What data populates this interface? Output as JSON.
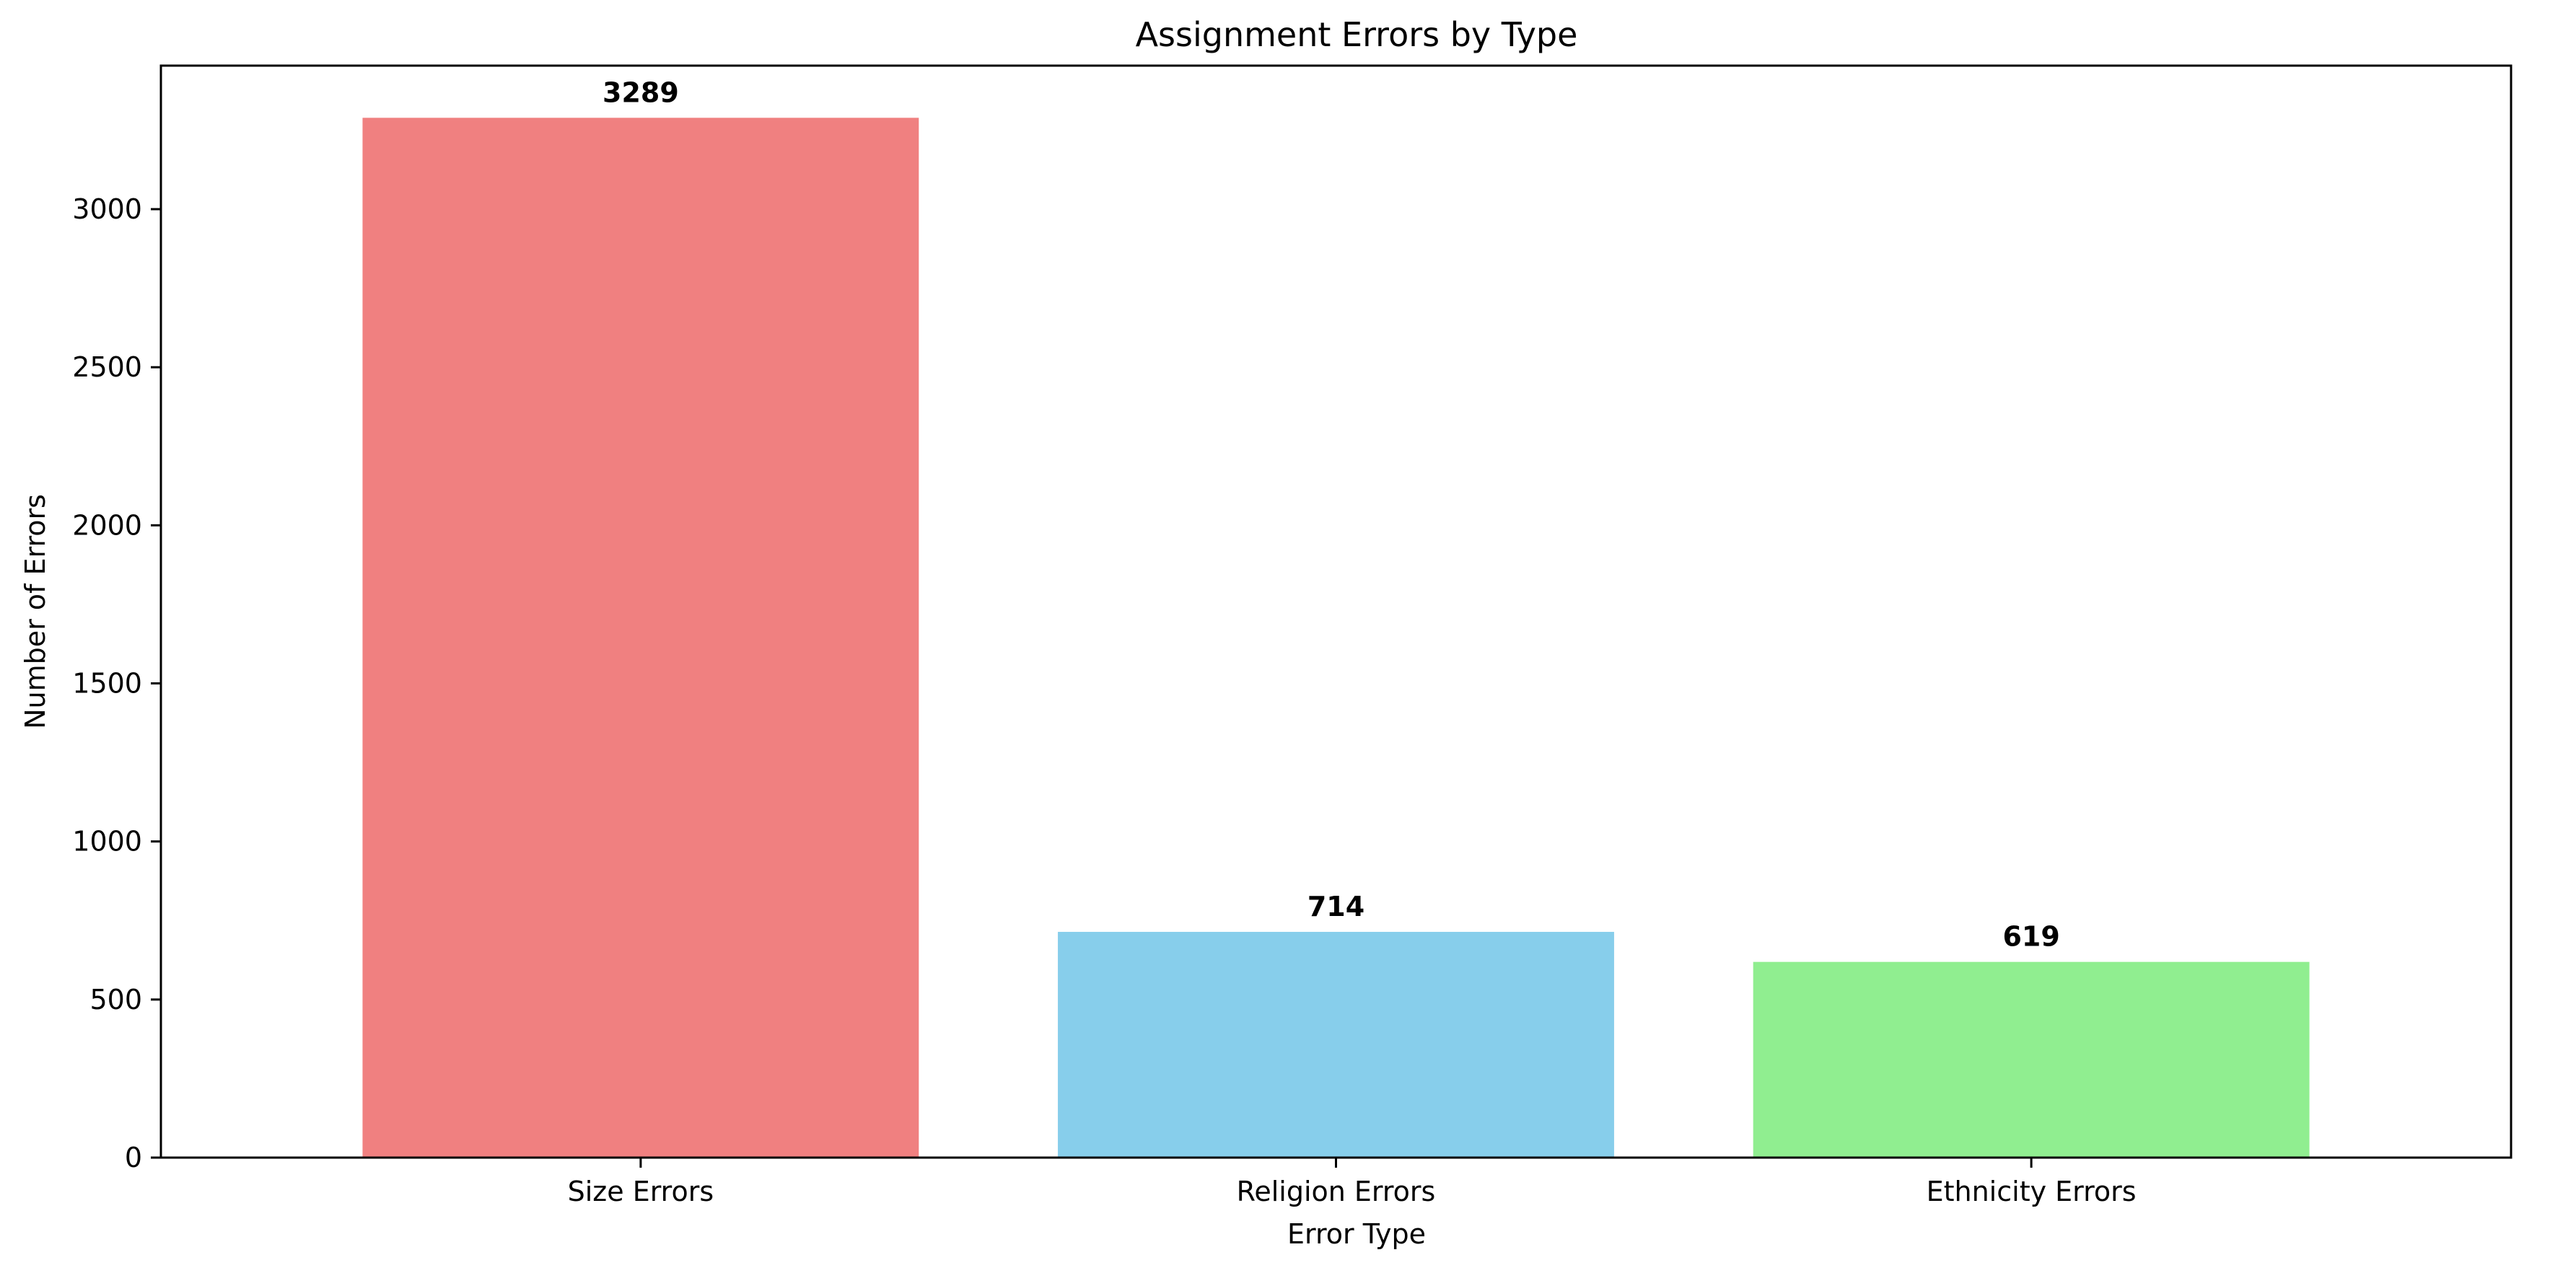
{
  "chart_data": {
    "type": "bar",
    "title": "Assignment Errors by Type",
    "xlabel": "Error Type",
    "ylabel": "Number of Errors",
    "categories": [
      "Size Errors",
      "Religion Errors",
      "Ethnicity Errors"
    ],
    "values": [
      3289,
      714,
      619
    ],
    "value_labels": [
      "3289",
      "714",
      "619"
    ],
    "colors": [
      "#f08080",
      "#87ceeb",
      "#90ee90"
    ],
    "ylim": [
      0,
      3454
    ],
    "yticks": [
      0,
      500,
      1000,
      1500,
      2000,
      2500,
      3000
    ],
    "ytick_labels": [
      "0",
      "500",
      "1000",
      "1500",
      "2000",
      "2500",
      "3000"
    ],
    "grid": false,
    "legend": "none"
  }
}
